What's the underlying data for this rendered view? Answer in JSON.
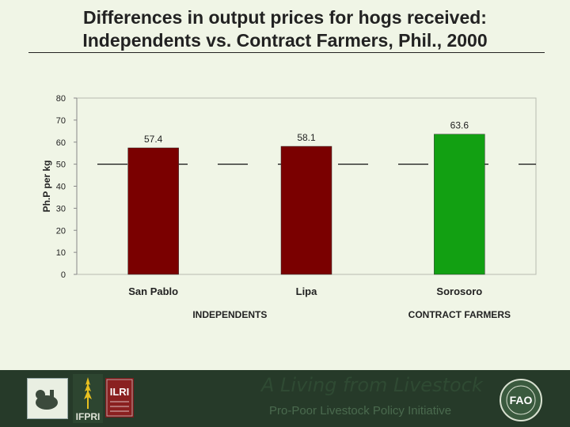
{
  "slide": {
    "title_line1": "Differences in output prices for hogs received:",
    "title_line2": "Independents vs. Contract Farmers, Phil., 2000"
  },
  "chart_data": {
    "type": "bar",
    "title": "",
    "xlabel": "",
    "ylabel": "Ph.P per kg",
    "ylim": [
      0,
      80
    ],
    "yticks": [
      0,
      10,
      20,
      30,
      40,
      50,
      60,
      70,
      80
    ],
    "categories": [
      "San Pablo",
      "Lipa",
      "Sorosoro"
    ],
    "values": [
      57.4,
      58.1,
      63.6
    ],
    "data_labels": [
      "57.4",
      "58.1",
      "63.6"
    ],
    "bar_colors": [
      "#7a0000",
      "#7a0000",
      "#12a012"
    ],
    "reference_value": 50,
    "grid": false,
    "groups": [
      {
        "label": "INDEPENDENTS",
        "categories": [
          "San Pablo",
          "Lipa"
        ]
      },
      {
        "label": "CONTRACT FARMERS",
        "categories": [
          "Sorosoro"
        ]
      }
    ]
  },
  "footer": {
    "tagline": "A Living from Livestock",
    "subtitle": "Pro-Poor Livestock Policy Initiative",
    "logos": [
      "hogs-logo",
      "ifpri-logo",
      "ilri-logo",
      "fao-logo"
    ],
    "ifpri_text": "IFPRI",
    "ilri_text": "ILRI",
    "fao_text": "FAO"
  }
}
